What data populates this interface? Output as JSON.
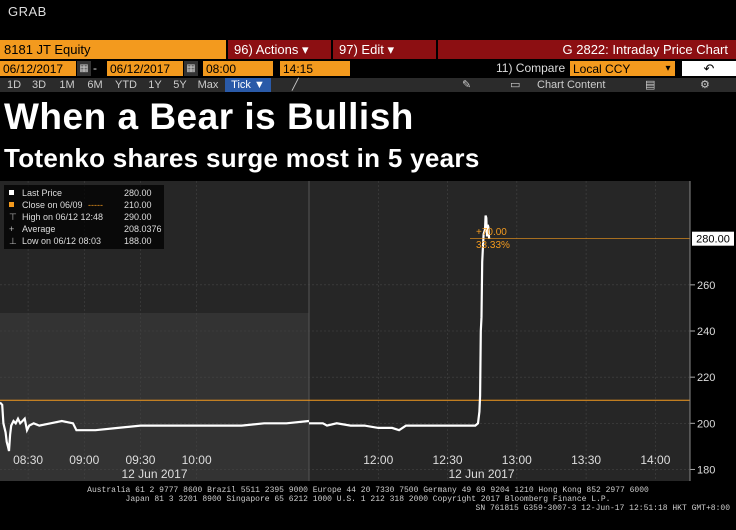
{
  "app": {
    "title": "GRAB"
  },
  "toolbar": {
    "ticker": "8181 JT Equity",
    "actions_label": "Actions",
    "actions_num": "96)",
    "edit_label": "Edit",
    "edit_num": "97)",
    "chart_title": "G 2822: Intraday Price Chart"
  },
  "range": {
    "start_date": "06/12/2017",
    "end_date": "06/12/2017",
    "start_time": "08:00",
    "end_time": "14:15",
    "compare_label": "11) Compare",
    "compare_value": "Local CCY"
  },
  "periods": [
    "1D",
    "3D",
    "1M",
    "6M",
    "YTD",
    "1Y",
    "5Y",
    "Max"
  ],
  "tick_label": "Tick ▼",
  "chart_content_label": "Chart Content",
  "headline": "When a Bear is Bullish",
  "subhead": "Totenko shares surge most in 5 years",
  "legend": [
    {
      "label": "Last Price",
      "value": "280.00"
    },
    {
      "label": "Close on 06/09",
      "value": "210.00"
    },
    {
      "label": "High on 06/12 12:48",
      "value": "290.00"
    },
    {
      "label": "Average",
      "value": "208.0376"
    },
    {
      "label": "Low on 06/12 08:03",
      "value": "188.00"
    }
  ],
  "annotation": {
    "change": "+70.00",
    "pct": "33.33%"
  },
  "last_price_tag": "280.00",
  "footer": [
    "Australia 61 2 9777 8600 Brazil 5511 2395 9000 Europe 44 20 7330 7500 Germany 49 69 9204 1210 Hong Kong 852 2977 6000",
    "Japan 81 3 3201 8900      Singapore 65 6212 1000      U.S. 1 212 318 2000        Copyright 2017 Bloomberg Finance L.P.",
    "SN 761815 G359-3007-3 12-Jun-17 12:51:18 HKT  GMT+8:00"
  ],
  "colors": {
    "accent": "#f39a1e",
    "red": "#8c0f12",
    "price_line": "#ffffff",
    "close_line": "#f39a1e"
  },
  "chart_data": {
    "type": "line",
    "ylim": [
      175,
      305
    ],
    "yticks": [
      180,
      200,
      220,
      240,
      260
    ],
    "close_value": 210,
    "sessions": [
      {
        "date_label": "12 Jun 2017",
        "start": 8.25,
        "end": 11.0,
        "ticks": [
          {
            "t": 8.5,
            "label": "08:30"
          },
          {
            "t": 9.0,
            "label": "09:00"
          },
          {
            "t": 9.5,
            "label": "09:30"
          },
          {
            "t": 10.0,
            "label": "10:00"
          }
        ],
        "points": [
          [
            8.25,
            209
          ],
          [
            8.27,
            208
          ],
          [
            8.28,
            200
          ],
          [
            8.3,
            196
          ],
          [
            8.31,
            192
          ],
          [
            8.32,
            190
          ],
          [
            8.33,
            188
          ],
          [
            8.34,
            195
          ],
          [
            8.35,
            199
          ],
          [
            8.37,
            201
          ],
          [
            8.39,
            200
          ],
          [
            8.41,
            202
          ],
          [
            8.43,
            200
          ],
          [
            8.45,
            201
          ],
          [
            8.47,
            202
          ],
          [
            8.49,
            197
          ],
          [
            8.51,
            199
          ],
          [
            8.55,
            200
          ],
          [
            8.6,
            199
          ],
          [
            8.7,
            200
          ],
          [
            8.8,
            201
          ],
          [
            8.9,
            200
          ],
          [
            8.93,
            197
          ],
          [
            9.0,
            197
          ],
          [
            9.1,
            197
          ],
          [
            9.3,
            198
          ],
          [
            9.5,
            199
          ],
          [
            9.7,
            199
          ],
          [
            9.9,
            199
          ],
          [
            10.0,
            199
          ],
          [
            10.2,
            199
          ],
          [
            10.4,
            199
          ],
          [
            10.6,
            200
          ],
          [
            10.8,
            200
          ],
          [
            11.0,
            201
          ]
        ]
      },
      {
        "date_label": "12 Jun 2017",
        "start": 11.5,
        "end": 14.25,
        "ticks": [
          {
            "t": 12.0,
            "label": "12:00"
          },
          {
            "t": 12.5,
            "label": "12:30"
          },
          {
            "t": 13.0,
            "label": "13:00"
          },
          {
            "t": 13.5,
            "label": "13:30"
          },
          {
            "t": 14.0,
            "label": "14:00"
          }
        ],
        "points": [
          [
            11.5,
            200
          ],
          [
            11.6,
            200
          ],
          [
            11.63,
            199
          ],
          [
            11.7,
            200
          ],
          [
            11.8,
            199
          ],
          [
            11.9,
            199
          ],
          [
            12.0,
            198
          ],
          [
            12.1,
            198
          ],
          [
            12.15,
            197
          ],
          [
            12.2,
            199
          ],
          [
            12.3,
            199
          ],
          [
            12.4,
            199
          ],
          [
            12.5,
            199
          ],
          [
            12.6,
            199
          ],
          [
            12.7,
            199
          ],
          [
            12.72,
            200
          ],
          [
            12.73,
            205
          ],
          [
            12.735,
            212
          ],
          [
            12.74,
            240
          ],
          [
            12.745,
            246
          ],
          [
            12.75,
            270
          ],
          [
            12.76,
            282
          ],
          [
            12.77,
            284
          ],
          [
            12.775,
            290
          ],
          [
            12.78,
            289
          ],
          [
            12.785,
            281
          ],
          [
            12.79,
            286
          ],
          [
            12.795,
            285
          ],
          [
            12.8,
            280
          ]
        ]
      }
    ]
  }
}
